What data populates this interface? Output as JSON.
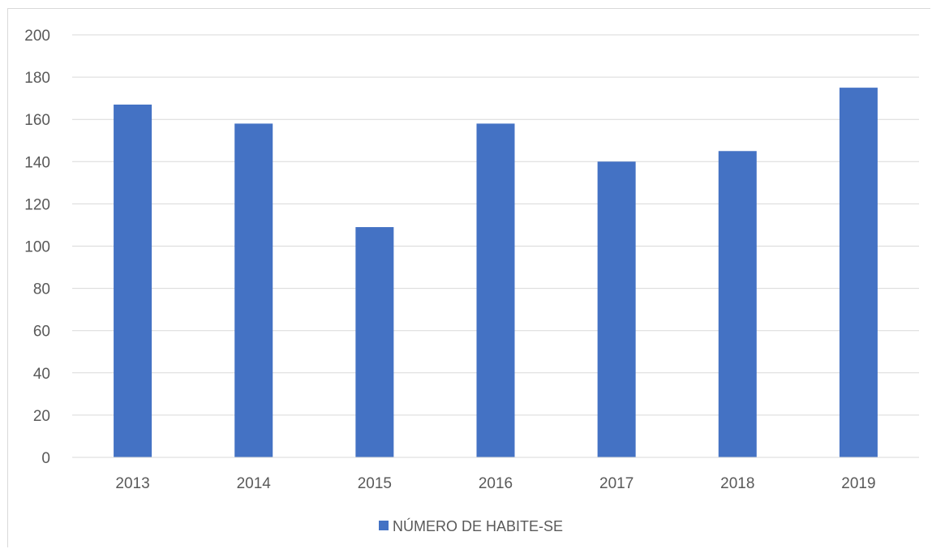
{
  "chart_data": {
    "type": "bar",
    "title": "",
    "xlabel": "",
    "ylabel": "",
    "categories": [
      "2013",
      "2014",
      "2015",
      "2016",
      "2017",
      "2018",
      "2019"
    ],
    "series": [
      {
        "name": "NÚMERO DE HABITE-SE",
        "values": [
          167,
          158,
          109,
          158,
          140,
          145,
          175
        ],
        "color": "#4472c4"
      }
    ],
    "ylim": [
      0,
      200
    ],
    "yticks": [
      0,
      20,
      40,
      60,
      80,
      100,
      120,
      140,
      160,
      180,
      200
    ],
    "grid": true,
    "legend_position": "bottom"
  }
}
